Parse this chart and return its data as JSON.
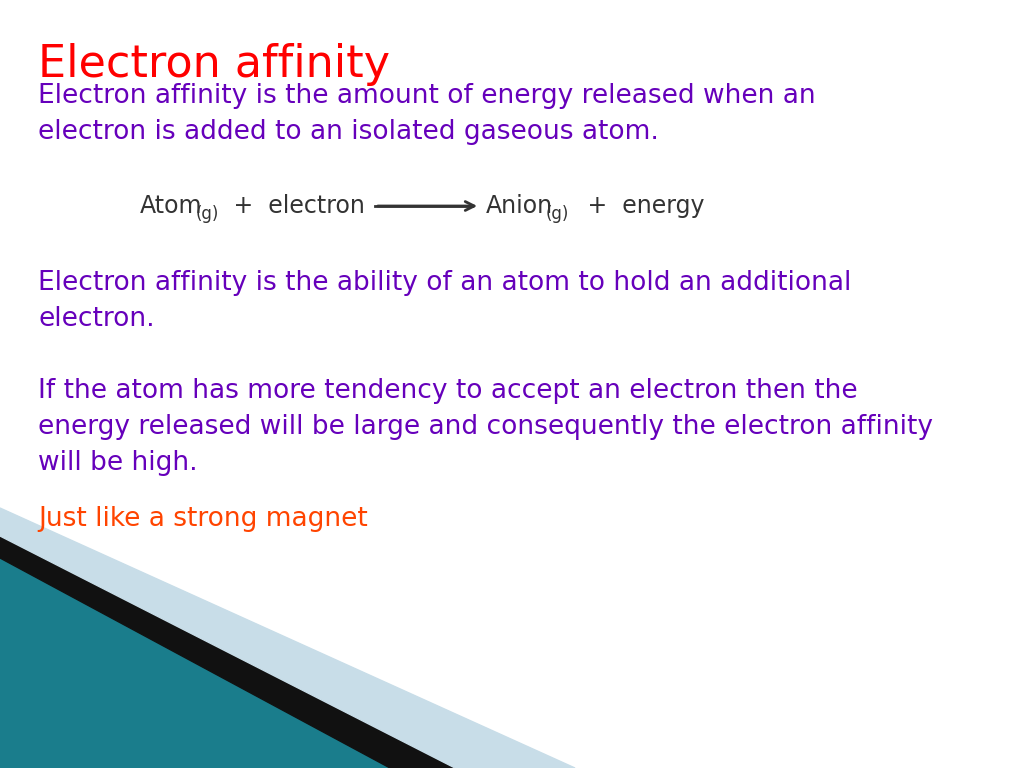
{
  "title": "Electron affinity",
  "title_color": "#ff0000",
  "title_fontsize": 32,
  "subtitle": "Electron affinity is the amount of energy released when an\nelectron is added to an isolated gaseous atom.",
  "subtitle_color": "#6600bb",
  "subtitle_fontsize": 19,
  "equation_color": "#333333",
  "equation_fontsize": 17,
  "para1": "Electron affinity is the ability of an atom to hold an additional\nelectron.",
  "para1_color": "#6600bb",
  "para1_fontsize": 19,
  "para2": "If the atom has more tendency to accept an electron then the\nenergy released will be large and consequently the electron affinity\nwill be high.",
  "para2_color": "#6600bb",
  "para2_fontsize": 19,
  "para3": "Just like a strong magnet",
  "para3_color": "#ff4400",
  "para3_fontsize": 19,
  "bg_color": "#ffffff",
  "teal_color": "#1a7d8c",
  "black_color": "#111111",
  "lightblue_color": "#c8dde8"
}
